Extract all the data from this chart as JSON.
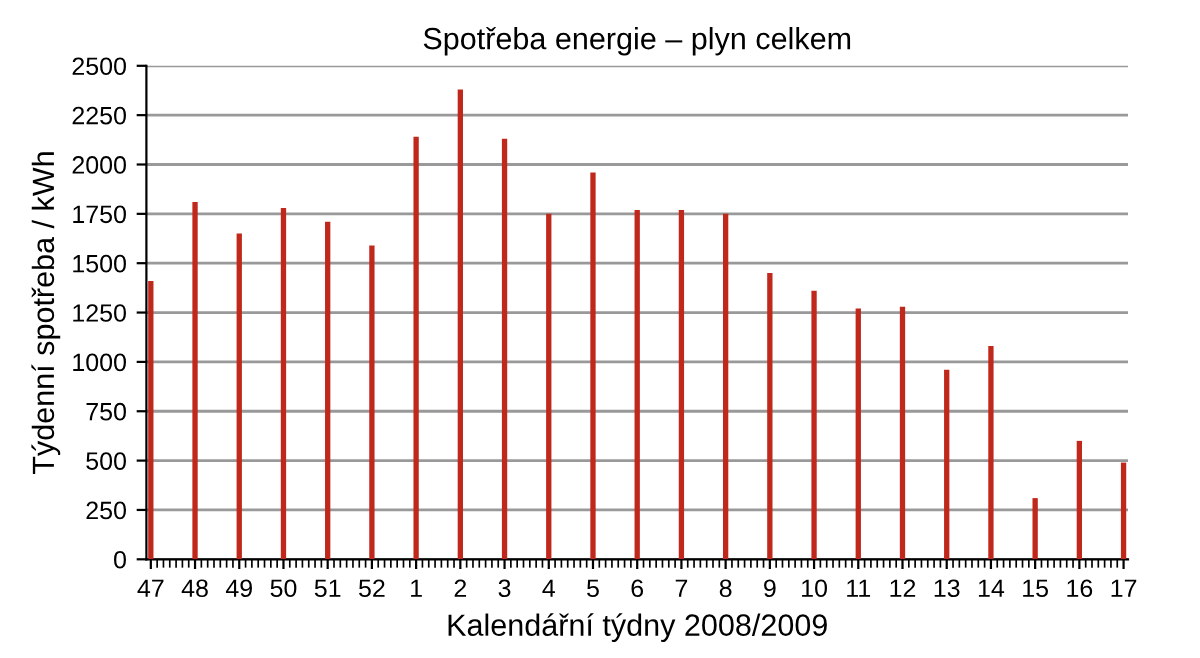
{
  "chart_data": {
    "type": "bar",
    "title": "Spotřeba energie – plyn celkem",
    "xlabel": "Kalendářní týdny 2008/2009",
    "ylabel": "Týdenní spotřeba / kWh",
    "categories": [
      "47",
      "48",
      "49",
      "50",
      "51",
      "52",
      "1",
      "2",
      "3",
      "4",
      "5",
      "6",
      "7",
      "8",
      "9",
      "10",
      "11",
      "12",
      "13",
      "14",
      "15",
      "16",
      "17"
    ],
    "values": [
      1410,
      1810,
      1650,
      1780,
      1710,
      1590,
      2140,
      2380,
      2130,
      1750,
      1960,
      1770,
      1770,
      1750,
      1450,
      1360,
      1270,
      1280,
      960,
      1080,
      310,
      600,
      490
    ],
    "color": "#c0281c",
    "ylim": [
      0,
      2500
    ],
    "yticks": [
      0,
      250,
      500,
      750,
      1000,
      1250,
      1500,
      1750,
      2000,
      2250,
      2500
    ],
    "grid": "y",
    "legend": false
  }
}
